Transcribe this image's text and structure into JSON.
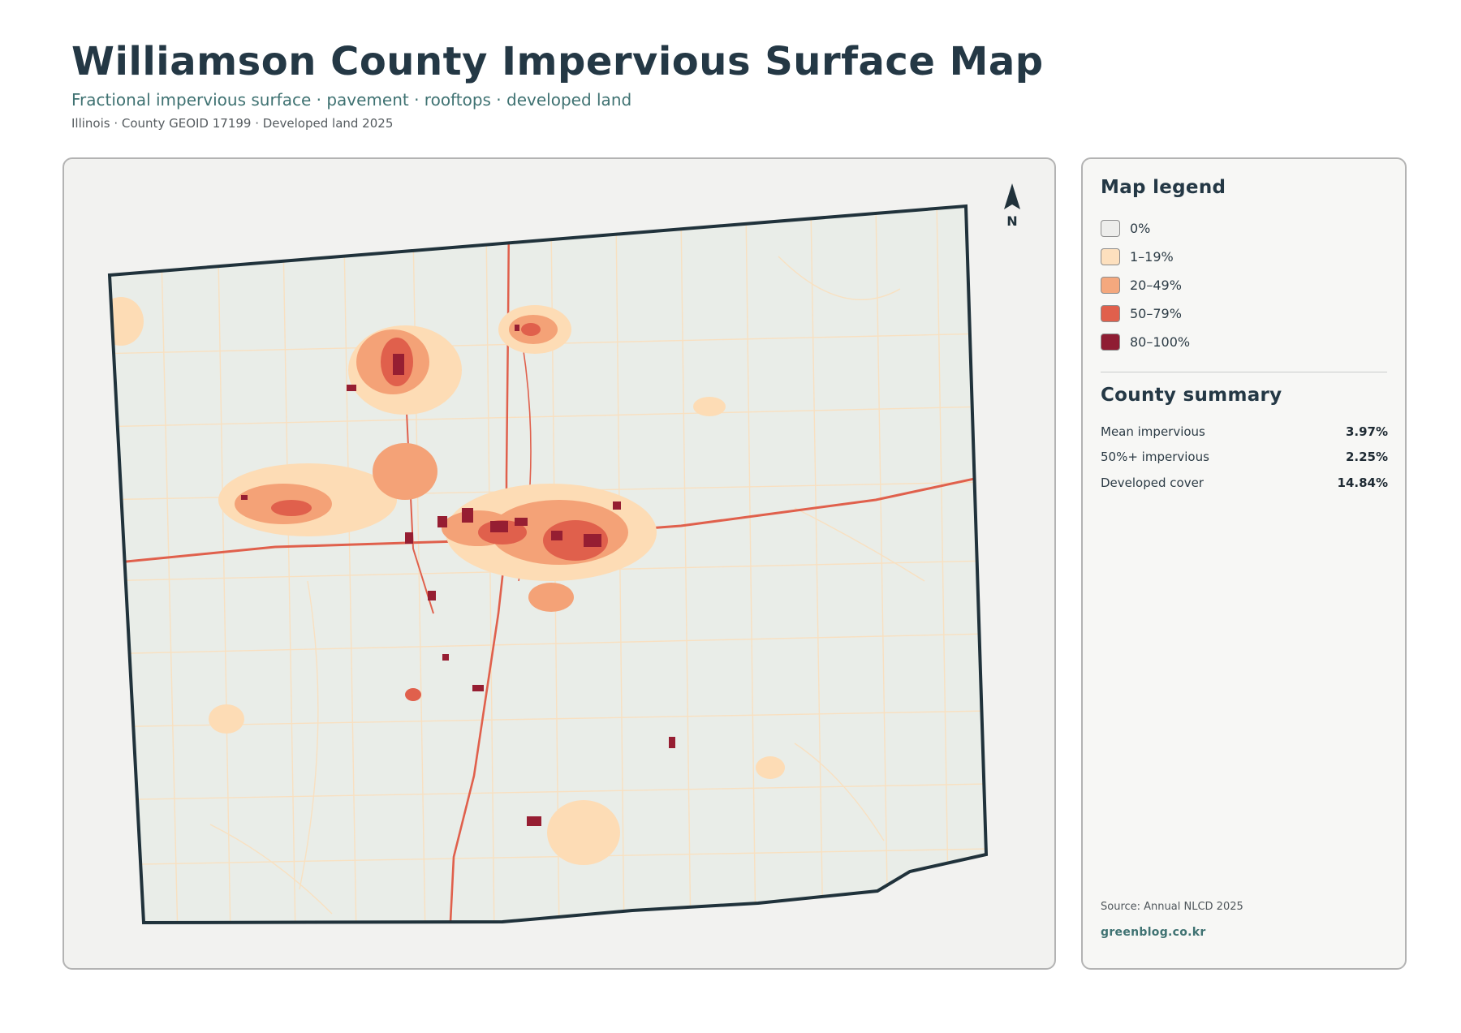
{
  "header": {
    "title": "Williamson County Impervious Surface Map",
    "subtitle": "Fractional impervious surface · pavement · rooftops · developed land",
    "meta": "Illinois · County GEOID 17199 · Developed land 2025"
  },
  "map": {
    "north_label": "N",
    "colors": {
      "background": "#e9ede8",
      "border": "#20323b",
      "class_1_19": "#fddcb5",
      "class_20_49": "#f4a277",
      "class_50_79": "#e0604c",
      "class_80_100": "#961e32"
    }
  },
  "legend": {
    "title": "Map legend",
    "items": [
      {
        "label": "0%",
        "color": "#ededeb"
      },
      {
        "label": "1–19%",
        "color": "#fde0be"
      },
      {
        "label": "20–49%",
        "color": "#f4a87e"
      },
      {
        "label": "50–79%",
        "color": "#e0604c"
      },
      {
        "label": "80–100%",
        "color": "#8f1d33"
      }
    ]
  },
  "summary": {
    "title": "County summary",
    "rows": [
      {
        "label": "Mean impervious",
        "value": "3.97%"
      },
      {
        "label": "50%+ impervious",
        "value": "2.25%"
      },
      {
        "label": "Developed cover",
        "value": "14.84%"
      }
    ]
  },
  "footer": {
    "source": "Source: Annual NLCD 2025",
    "credit": "greenblog.co.kr"
  }
}
